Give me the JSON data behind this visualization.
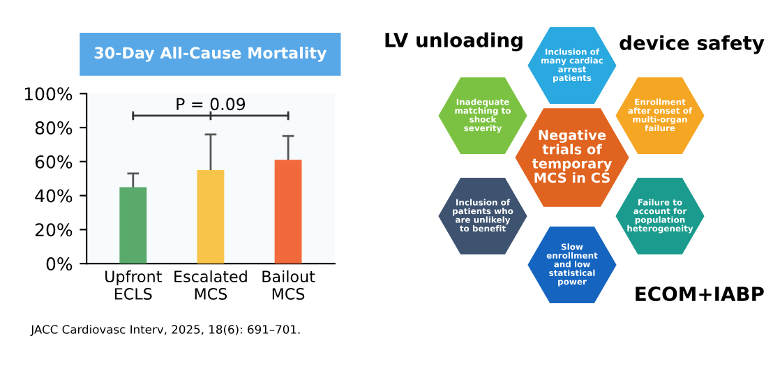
{
  "chart_data": [
    {
      "type": "bar",
      "title": "30-Day All-Cause Mortality",
      "categories": [
        "Upfront\nECLS",
        "Escalated\nMCS",
        "Bailout\nMCS"
      ],
      "values": [
        45,
        55,
        61
      ],
      "colors": [
        "#5aab6b",
        "#f9c44a",
        "#f26a3c"
      ],
      "errors": [
        8,
        21,
        14
      ],
      "ylim": [
        0,
        100
      ],
      "yticks": [
        {
          "value": 0,
          "label": "0%"
        },
        {
          "value": 20,
          "label": "20%"
        },
        {
          "value": 40,
          "label": "40%"
        },
        {
          "value": 60,
          "label": "60%"
        },
        {
          "value": 80,
          "label": "80%"
        },
        {
          "value": 100,
          "label": "100%"
        }
      ],
      "annotations": [
        "P = 0.09",
        "JACC Cardiovasc Interv, 2025, 18(6): 691–701."
      ],
      "grid": false
    },
    {
      "type": "other",
      "categories": [
        "Negative\ntrials of\ntemporary\nMCS in CS",
        "Inclusion of\nmany cardiac\narrest\npatients",
        "Inadequate\nmatching to\nshock\nseverity",
        "Enrollment\nafter onset of\nmulti-organ\nfailure",
        "Inclusion of\npatients who\nare unlikely\nto benefit",
        "Failure to\naccount for\npopulation\nheterogeneity",
        "Slow\nenrollment\nand low\nstatistical\npower"
      ],
      "colors": [
        "#e0631f",
        "#2aa8e0",
        "#7cc242",
        "#f5a623",
        "#3e5370",
        "#1a9b8e",
        "#1565c0"
      ],
      "annotations": [
        "LV unloading",
        "device safety",
        "ECOM+IABP"
      ]
    }
  ]
}
